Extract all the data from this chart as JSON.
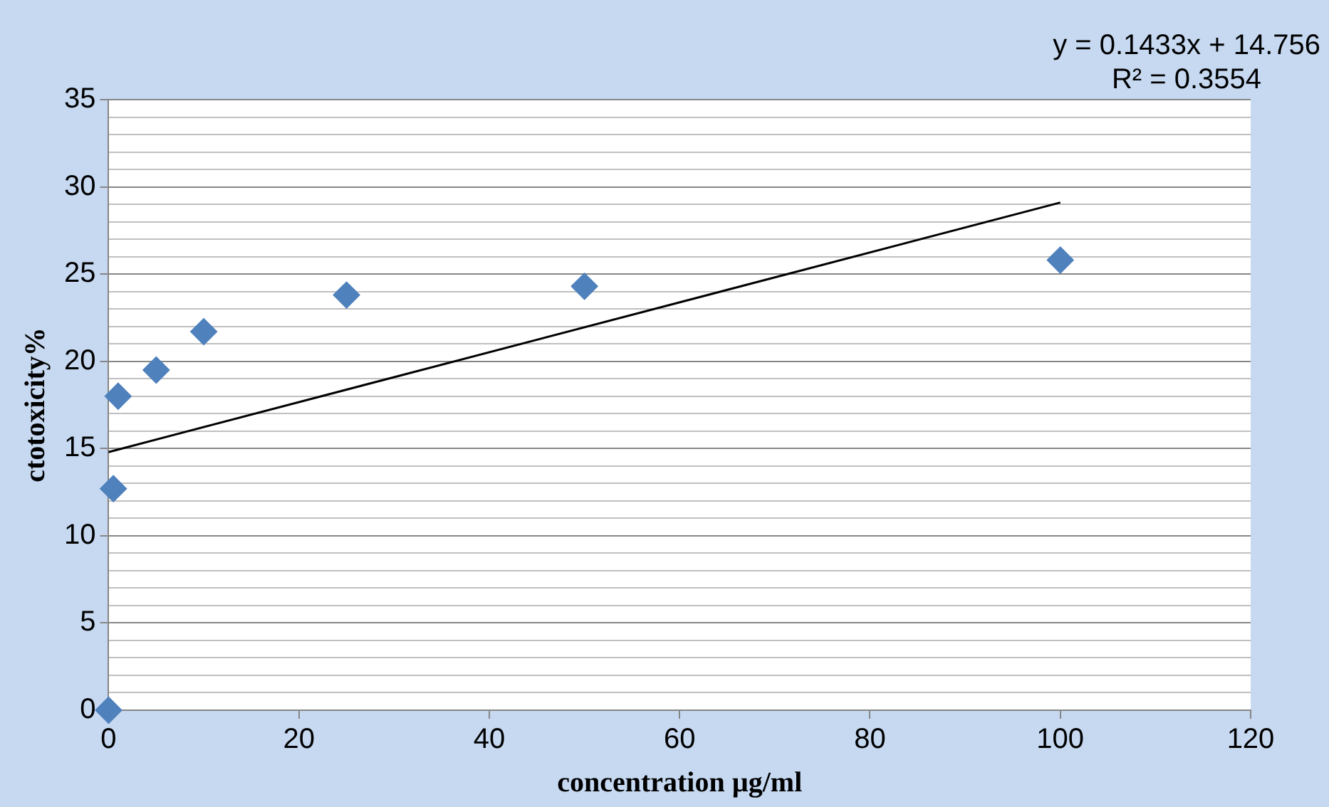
{
  "chart_data": {
    "type": "scatter",
    "xlabel": "concentration µg/ml",
    "ylabel": "ctotoxicity%",
    "series": [
      {
        "color": "#4f81bd",
        "x": [
          0,
          0.5,
          1,
          5,
          10,
          25,
          50,
          100
        ],
        "values": [
          0,
          12.7,
          18,
          19.5,
          21.7,
          23.8,
          24.3,
          25.8
        ],
        "marker": "diamond"
      },
      {
        "type": "line",
        "color": "#000000",
        "x": [
          0,
          100
        ],
        "values": [
          14.8,
          29.1
        ],
        "marker": "none"
      }
    ],
    "xlim": [
      0,
      120
    ],
    "xticks": [
      0,
      20,
      40,
      60,
      80,
      100,
      120
    ],
    "ylim": [
      0,
      35
    ],
    "yticks": [
      0,
      {
        "value": 1,
        "label": null
      },
      {
        "value": 2,
        "label": null
      },
      {
        "value": 3,
        "label": null
      },
      {
        "value": 4,
        "label": null
      },
      5,
      {
        "value": 6,
        "label": null
      },
      {
        "value": 7,
        "label": null
      },
      {
        "value": 8,
        "label": null
      },
      {
        "value": 9,
        "label": null
      },
      10,
      {
        "value": 11,
        "label": null
      },
      {
        "value": 12,
        "label": null
      },
      {
        "value": 13,
        "label": null
      },
      {
        "value": 14,
        "label": null
      },
      15,
      {
        "value": 16,
        "label": null
      },
      {
        "value": 17,
        "label": null
      },
      {
        "value": 18,
        "label": null
      },
      {
        "value": 19,
        "label": null
      },
      20,
      {
        "value": 21,
        "label": null
      },
      {
        "value": 22,
        "label": null
      },
      {
        "value": 23,
        "label": null
      },
      {
        "value": 24,
        "label": null
      },
      25,
      {
        "value": 26,
        "label": null
      },
      {
        "value": 27,
        "label": null
      },
      {
        "value": 28,
        "label": null
      },
      {
        "value": 29,
        "label": null
      },
      30,
      {
        "value": 31,
        "label": null
      },
      {
        "value": 32,
        "label": null
      },
      {
        "value": 33,
        "label": null
      },
      {
        "value": 34,
        "label": null
      },
      35
    ],
    "grid": "y",
    "legend": false,
    "annotations": [
      "y = 0.1433x + 14.756",
      "R² = 0.3554"
    ]
  }
}
